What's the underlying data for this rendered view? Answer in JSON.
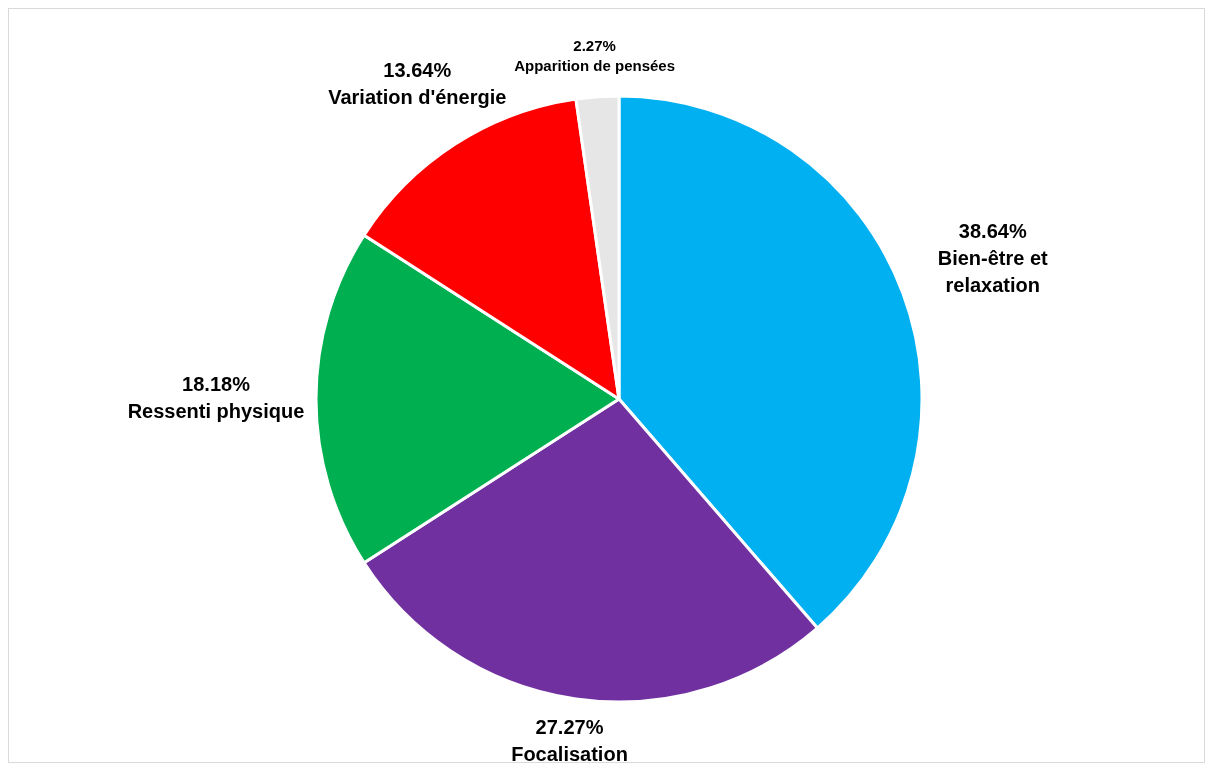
{
  "chart_data": {
    "type": "pie",
    "categories": [
      "Bien-être et relaxation",
      "Focalisation",
      "Ressenti physique",
      "Variation d'énergie",
      "Apparition de pensées"
    ],
    "values": [
      38.64,
      27.27,
      18.18,
      13.64,
      2.27
    ],
    "colors": [
      "#00b0f0",
      "#7030a0",
      "#00b050",
      "#ff0000",
      "#e6e6e6"
    ],
    "value_labels": [
      "38.64%",
      "27.27%",
      "18.18%",
      "13.64%",
      "2.27%"
    ]
  }
}
